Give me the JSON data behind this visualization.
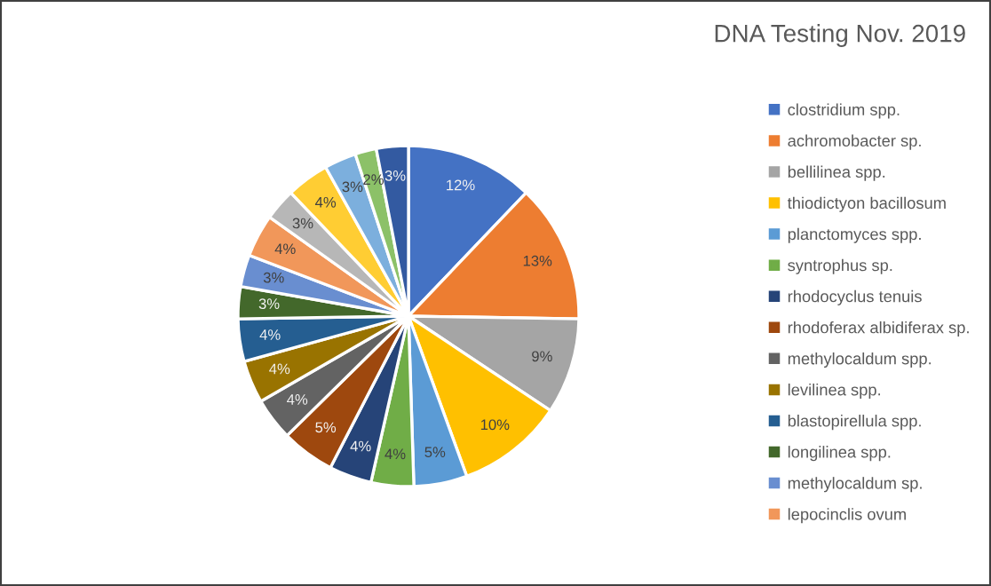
{
  "chart_data": {
    "type": "pie",
    "title": "DNA Testing Nov. 2019",
    "categories": [
      "clostridium spp.",
      "achromobacter sp.",
      "bellilinea spp.",
      "thiodictyon bacillosum",
      "planctomyces spp.",
      "syntrophus sp.",
      "rhodocyclus tenuis",
      "rhodoferax albidiferax sp.",
      "methylocaldum spp.",
      "levilinea spp.",
      "blastopirellula spp.",
      "longilinea spp.",
      "methylocaldum sp.",
      "lepocinclis ovum",
      null,
      null,
      null,
      null,
      null
    ],
    "values": [
      12,
      13,
      9,
      10,
      5,
      4,
      4,
      5,
      4,
      4,
      4,
      3,
      3,
      4,
      3,
      4,
      3,
      2,
      3
    ],
    "colors": [
      "#4472c4",
      "#ed7d31",
      "#a5a5a5",
      "#ffc000",
      "#5b9bd5",
      "#70ad47",
      "#264478",
      "#9e480e",
      "#636363",
      "#997300",
      "#255e91",
      "#43682b",
      "#698ed0",
      "#f1975a",
      "#b7b7b7",
      "#ffcd33",
      "#7cafdd",
      "#8cc168",
      "#335aa1"
    ],
    "value_labels": [
      "12%",
      "13%",
      "9%",
      "10%",
      "5%",
      "4%",
      "4%",
      "5%",
      "4%",
      "4%",
      "4%",
      "3%",
      "3%",
      "4%",
      "3%",
      "4%",
      "3%",
      "2%",
      "3%"
    ],
    "legend": "right"
  }
}
